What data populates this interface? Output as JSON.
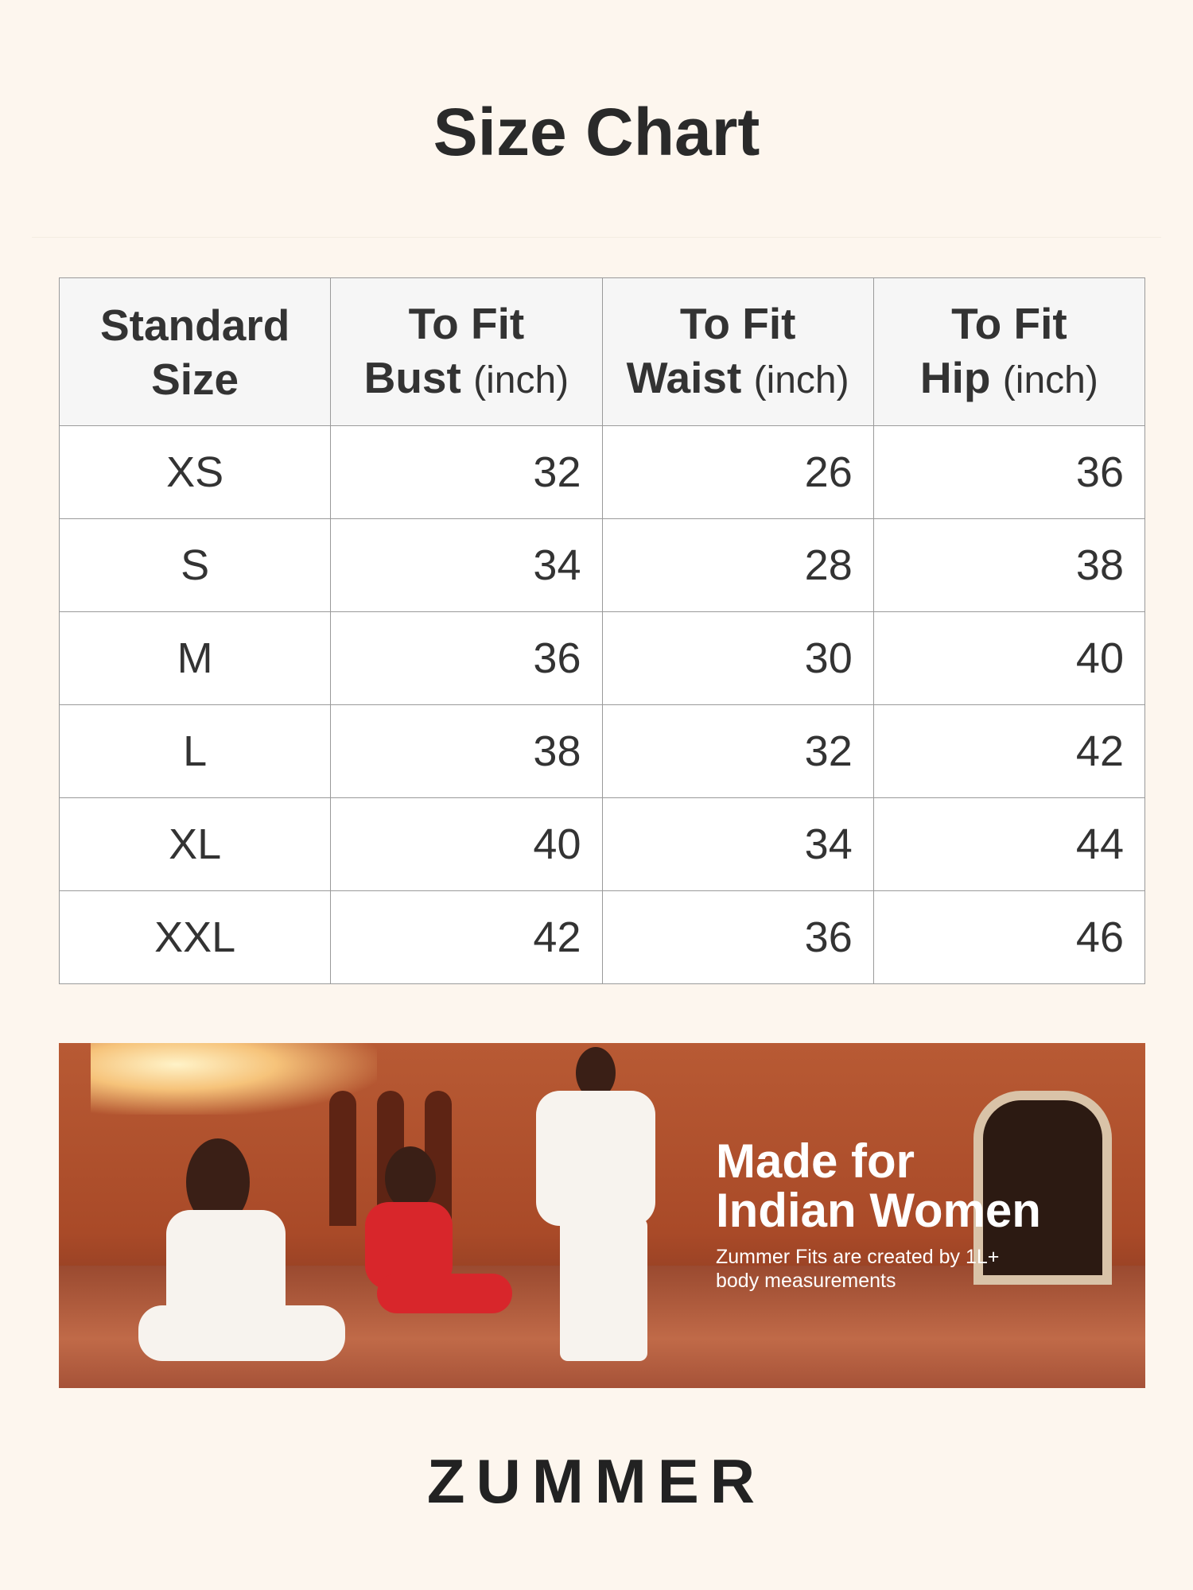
{
  "title": "Size Chart",
  "table": {
    "headers": [
      {
        "line1": "Standard",
        "line2": "Size",
        "unit": ""
      },
      {
        "line1": "To Fit",
        "line2": "Bust",
        "unit": "(inch)"
      },
      {
        "line1": "To Fit",
        "line2": "Waist",
        "unit": "(inch)"
      },
      {
        "line1": "To Fit",
        "line2": "Hip",
        "unit": "(inch)"
      }
    ],
    "rows": [
      {
        "size": "XS",
        "bust": "32",
        "waist": "26",
        "hip": "36"
      },
      {
        "size": "S",
        "bust": "34",
        "waist": "28",
        "hip": "38"
      },
      {
        "size": "M",
        "bust": "36",
        "waist": "30",
        "hip": "40"
      },
      {
        "size": "L",
        "bust": "38",
        "waist": "32",
        "hip": "42"
      },
      {
        "size": "XL",
        "bust": "40",
        "waist": "34",
        "hip": "44"
      },
      {
        "size": "XXL",
        "bust": "42",
        "waist": "36",
        "hip": "46"
      }
    ]
  },
  "banner": {
    "headline_1": "Made for",
    "headline_2": "Indian Women",
    "subtext_1": "Zummer Fits are created by 1L+",
    "subtext_2": "body measurements"
  },
  "brand": {
    "logo": "ZUMMER"
  }
}
